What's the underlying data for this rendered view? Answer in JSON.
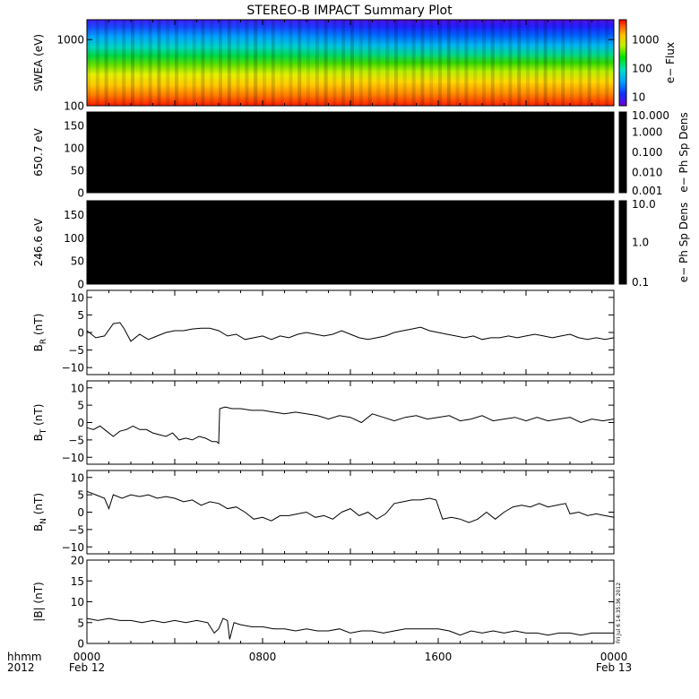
{
  "title": "STEREO-B IMPACT Summary Plot",
  "stamp": "Fri Jul  6 14:35:36 2012",
  "time_labels": {
    "hhmm": "hhmm",
    "year": "2012",
    "ticks": [
      {
        "hour": 0,
        "label": "0000",
        "date": "Feb 12"
      },
      {
        "hour": 8,
        "label": "0800",
        "date": ""
      },
      {
        "hour": 16,
        "label": "1600",
        "date": ""
      },
      {
        "hour": 24,
        "label": "0000",
        "date": "Feb 13"
      }
    ]
  },
  "colors": {
    "frame": "#000000",
    "trace": "#000000",
    "pad_fill": "#000000"
  },
  "chart_data": [
    {
      "type": "heatmap",
      "ylabel": "SWEA (eV)",
      "yscale": "log",
      "ylim": [
        100,
        2000
      ],
      "yticks": [
        {
          "v": 100,
          "label": "100"
        },
        {
          "v": 1000,
          "label": "1000"
        }
      ],
      "colorbar": {
        "label": "e− Flux",
        "scale": "log",
        "range": [
          5,
          5000
        ],
        "ticks": [
          {
            "v": 10,
            "label": "10"
          },
          {
            "v": 100,
            "label": "100"
          },
          {
            "v": 1000,
            "label": "1000"
          }
        ]
      }
    },
    {
      "type": "heatmap",
      "ylabel": "650.7 eV",
      "ylim": [
        0,
        180
      ],
      "yticks": [
        {
          "v": 0,
          "label": "0"
        },
        {
          "v": 50,
          "label": "50"
        },
        {
          "v": 100,
          "label": "100"
        },
        {
          "v": 150,
          "label": "150"
        }
      ],
      "colorbar": {
        "label": "e− Ph Sp Dens",
        "scale": "log",
        "range": [
          0.001,
          10
        ],
        "ticks": [
          {
            "v": 0.001,
            "label": "0.001"
          },
          {
            "v": 0.01,
            "label": "0.010"
          },
          {
            "v": 0.1,
            "label": "0.100"
          },
          {
            "v": 1,
            "label": "1.000"
          },
          {
            "v": 10,
            "label": "10.000"
          }
        ]
      }
    },
    {
      "type": "heatmap",
      "ylabel": "246.6 eV",
      "ylim": [
        0,
        180
      ],
      "yticks": [
        {
          "v": 0,
          "label": "0"
        },
        {
          "v": 50,
          "label": "50"
        },
        {
          "v": 100,
          "label": "100"
        },
        {
          "v": 150,
          "label": "150"
        }
      ],
      "colorbar": {
        "label": "e− Ph Sp Dens",
        "scale": "log",
        "range": [
          0.1,
          10
        ],
        "ticks": [
          {
            "v": 0.1,
            "label": "0.1"
          },
          {
            "v": 1,
            "label": "1.0"
          },
          {
            "v": 10,
            "label": "10.0"
          }
        ]
      }
    },
    {
      "type": "line",
      "ylabel_main": "B",
      "ylabel_sub": "R",
      "ylabel_unit": " (nT)",
      "ylim": [
        -12,
        12
      ],
      "yticks": [
        {
          "v": -10,
          "label": "−10"
        },
        {
          "v": -5,
          "label": "−5"
        },
        {
          "v": 0,
          "label": "0"
        },
        {
          "v": 5,
          "label": "5"
        },
        {
          "v": 10,
          "label": "10"
        }
      ],
      "x": [
        0,
        0.4,
        0.8,
        1.2,
        1.5,
        1.7,
        2.0,
        2.4,
        2.8,
        3.2,
        3.6,
        4.0,
        4.4,
        4.8,
        5.2,
        5.6,
        6.0,
        6.4,
        6.8,
        7.2,
        7.6,
        8.0,
        8.4,
        8.8,
        9.2,
        9.6,
        10.0,
        10.4,
        10.8,
        11.2,
        11.6,
        12.0,
        12.4,
        12.8,
        13.2,
        13.6,
        14.0,
        14.4,
        14.8,
        15.2,
        15.6,
        16.0,
        16.4,
        16.8,
        17.2,
        17.6,
        18.0,
        18.4,
        18.8,
        19.2,
        19.6,
        20.0,
        20.4,
        20.8,
        21.2,
        21.6,
        22.0,
        22.4,
        22.8,
        23.2,
        23.6,
        24.0
      ],
      "y": [
        0.5,
        -1.5,
        -1.0,
        2.5,
        2.8,
        1.0,
        -2.5,
        -0.5,
        -2.0,
        -1.0,
        0.0,
        0.5,
        0.5,
        1.0,
        1.2,
        1.2,
        0.5,
        -1.0,
        -0.5,
        -2.0,
        -1.5,
        -1.0,
        -2.0,
        -1.0,
        -1.5,
        -0.5,
        0.0,
        -0.5,
        -1.0,
        -0.5,
        0.5,
        -0.5,
        -1.5,
        -2.0,
        -1.5,
        -1.0,
        0.0,
        0.5,
        1.0,
        1.5,
        0.5,
        0.0,
        -0.5,
        -1.0,
        -1.5,
        -1.0,
        -2.0,
        -1.5,
        -1.5,
        -1.0,
        -1.5,
        -1.0,
        -0.5,
        -1.0,
        -1.5,
        -1.0,
        -0.5,
        -1.5,
        -2.0,
        -1.5,
        -2.0,
        -1.5
      ]
    },
    {
      "type": "line",
      "ylabel_main": "B",
      "ylabel_sub": "T",
      "ylabel_unit": " (nT)",
      "ylim": [
        -12,
        12
      ],
      "yticks": [
        {
          "v": -10,
          "label": "−10"
        },
        {
          "v": -5,
          "label": "−5"
        },
        {
          "v": 0,
          "label": "0"
        },
        {
          "v": 5,
          "label": "5"
        },
        {
          "v": 10,
          "label": "10"
        }
      ],
      "x": [
        0,
        0.3,
        0.6,
        0.9,
        1.2,
        1.5,
        1.8,
        2.1,
        2.4,
        2.7,
        3.0,
        3.3,
        3.6,
        3.9,
        4.2,
        4.5,
        4.8,
        5.1,
        5.4,
        5.7,
        5.9,
        6.0,
        6.05,
        6.3,
        6.6,
        7.0,
        7.5,
        8.0,
        8.5,
        9.0,
        9.5,
        10.0,
        10.5,
        11.0,
        11.5,
        12.0,
        12.5,
        13.0,
        13.5,
        14.0,
        14.5,
        15.0,
        15.5,
        16.0,
        16.5,
        17.0,
        17.5,
        18.0,
        18.5,
        19.0,
        19.5,
        20.0,
        20.5,
        21.0,
        21.5,
        22.0,
        22.5,
        23.0,
        23.5,
        24.0
      ],
      "y": [
        -1.5,
        -2.0,
        -1.0,
        -2.5,
        -4.0,
        -2.5,
        -2.0,
        -1.0,
        -2.0,
        -2.0,
        -3.0,
        -3.5,
        -4.0,
        -3.0,
        -5.0,
        -4.5,
        -5.0,
        -4.0,
        -4.5,
        -5.5,
        -5.5,
        -6.0,
        4.0,
        4.5,
        4.0,
        4.0,
        3.5,
        3.5,
        3.0,
        2.5,
        3.0,
        2.5,
        2.0,
        1.0,
        2.0,
        1.5,
        0.0,
        2.5,
        1.5,
        0.5,
        1.5,
        2.0,
        1.0,
        1.5,
        2.0,
        0.5,
        1.0,
        2.0,
        0.5,
        1.0,
        1.5,
        0.5,
        1.5,
        0.5,
        1.0,
        1.5,
        0.0,
        1.0,
        0.5,
        1.0
      ]
    },
    {
      "type": "line",
      "ylabel_main": "B",
      "ylabel_sub": "N",
      "ylabel_unit": " (nT)",
      "ylim": [
        -12,
        12
      ],
      "yticks": [
        {
          "v": -10,
          "label": "−10"
        },
        {
          "v": -5,
          "label": "−5"
        },
        {
          "v": 0,
          "label": "0"
        },
        {
          "v": 5,
          "label": "5"
        },
        {
          "v": 10,
          "label": "10"
        }
      ],
      "x": [
        0,
        0.4,
        0.8,
        1.0,
        1.2,
        1.6,
        2.0,
        2.4,
        2.8,
        3.2,
        3.6,
        4.0,
        4.4,
        4.8,
        5.2,
        5.6,
        6.0,
        6.4,
        6.8,
        7.2,
        7.6,
        8.0,
        8.4,
        8.8,
        9.2,
        9.6,
        10.0,
        10.4,
        10.8,
        11.2,
        11.6,
        12.0,
        12.4,
        12.8,
        13.2,
        13.6,
        14.0,
        14.4,
        14.8,
        15.2,
        15.6,
        15.9,
        16.2,
        16.6,
        17.0,
        17.4,
        17.8,
        18.2,
        18.6,
        19.0,
        19.4,
        19.8,
        20.2,
        20.6,
        21.0,
        21.4,
        21.8,
        22.0,
        22.4,
        22.8,
        23.2,
        23.6,
        24.0
      ],
      "y": [
        6.0,
        5.0,
        4.0,
        1.0,
        5.0,
        4.0,
        5.0,
        4.5,
        5.0,
        4.0,
        4.5,
        4.0,
        3.0,
        3.5,
        2.0,
        3.0,
        2.5,
        1.0,
        1.5,
        0.0,
        -2.0,
        -1.5,
        -2.5,
        -1.0,
        -1.0,
        -0.5,
        0.0,
        -1.5,
        -1.0,
        -2.0,
        0.0,
        1.0,
        -1.0,
        0.0,
        -2.0,
        -0.5,
        2.5,
        3.0,
        3.5,
        3.5,
        4.0,
        3.5,
        -2.0,
        -1.5,
        -2.0,
        -3.0,
        -2.0,
        0.0,
        -2.0,
        0.0,
        1.5,
        2.0,
        1.5,
        2.5,
        1.5,
        2.0,
        2.5,
        -0.5,
        0.0,
        -1.0,
        -0.5,
        -1.0,
        -1.5
      ]
    },
    {
      "type": "line",
      "ylabel_main": "|B|",
      "ylabel_sub": "",
      "ylabel_unit": " (nT)",
      "ylim": [
        0,
        20
      ],
      "yticks": [
        {
          "v": 0,
          "label": "0"
        },
        {
          "v": 5,
          "label": "5"
        },
        {
          "v": 10,
          "label": "10"
        },
        {
          "v": 15,
          "label": "15"
        },
        {
          "v": 20,
          "label": "20"
        }
      ],
      "x": [
        0,
        0.5,
        1.0,
        1.5,
        2.0,
        2.5,
        3.0,
        3.5,
        4.0,
        4.5,
        5.0,
        5.5,
        5.8,
        6.0,
        6.2,
        6.4,
        6.5,
        6.7,
        7.0,
        7.5,
        8.0,
        8.5,
        9.0,
        9.5,
        10.0,
        10.5,
        11.0,
        11.5,
        12.0,
        12.5,
        13.0,
        13.5,
        14.0,
        14.5,
        15.0,
        15.5,
        16.0,
        16.5,
        17.0,
        17.5,
        18.0,
        18.5,
        19.0,
        19.5,
        20.0,
        20.5,
        21.0,
        21.5,
        22.0,
        22.5,
        23.0,
        23.5,
        24.0
      ],
      "y": [
        6.0,
        5.5,
        6.0,
        5.5,
        5.5,
        5.0,
        5.5,
        5.0,
        5.5,
        5.0,
        5.5,
        5.0,
        2.5,
        3.5,
        6.0,
        5.5,
        1.0,
        5.0,
        4.5,
        4.0,
        4.0,
        3.5,
        3.5,
        3.0,
        3.5,
        3.0,
        3.0,
        3.5,
        2.5,
        3.0,
        3.0,
        2.5,
        3.0,
        3.5,
        3.5,
        3.5,
        3.5,
        3.0,
        2.0,
        3.0,
        2.5,
        3.0,
        2.5,
        3.0,
        2.5,
        2.5,
        2.0,
        2.5,
        2.5,
        2.0,
        2.5,
        2.5,
        2.5
      ]
    }
  ]
}
